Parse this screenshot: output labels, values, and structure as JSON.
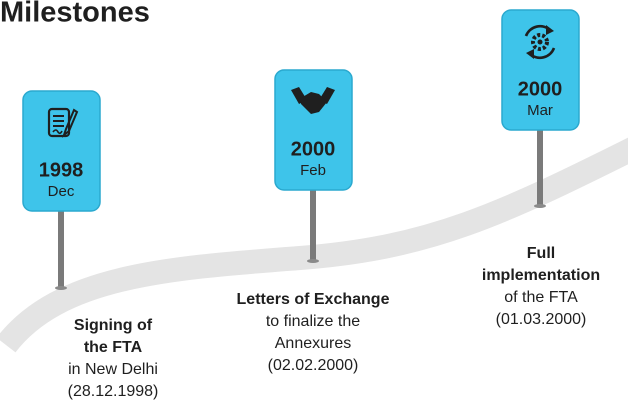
{
  "header": {
    "title": "Milestones"
  },
  "milestones": [
    {
      "year": "1998",
      "month": "Dec",
      "heading": [
        "Signing of",
        "the FTA"
      ],
      "lines": [
        "in New Delhi",
        "(28.12.1998)"
      ]
    },
    {
      "year": "2000",
      "month": "Feb",
      "heading": [
        "Letters of Exchange"
      ],
      "lines": [
        "to finalize the",
        "Annexures",
        "(02.02.2000)"
      ]
    },
    {
      "year": "2000",
      "month": "Mar",
      "heading": [
        "Full",
        "implementation"
      ],
      "lines": [
        "of the FTA",
        "(01.03.2000)"
      ]
    }
  ]
}
